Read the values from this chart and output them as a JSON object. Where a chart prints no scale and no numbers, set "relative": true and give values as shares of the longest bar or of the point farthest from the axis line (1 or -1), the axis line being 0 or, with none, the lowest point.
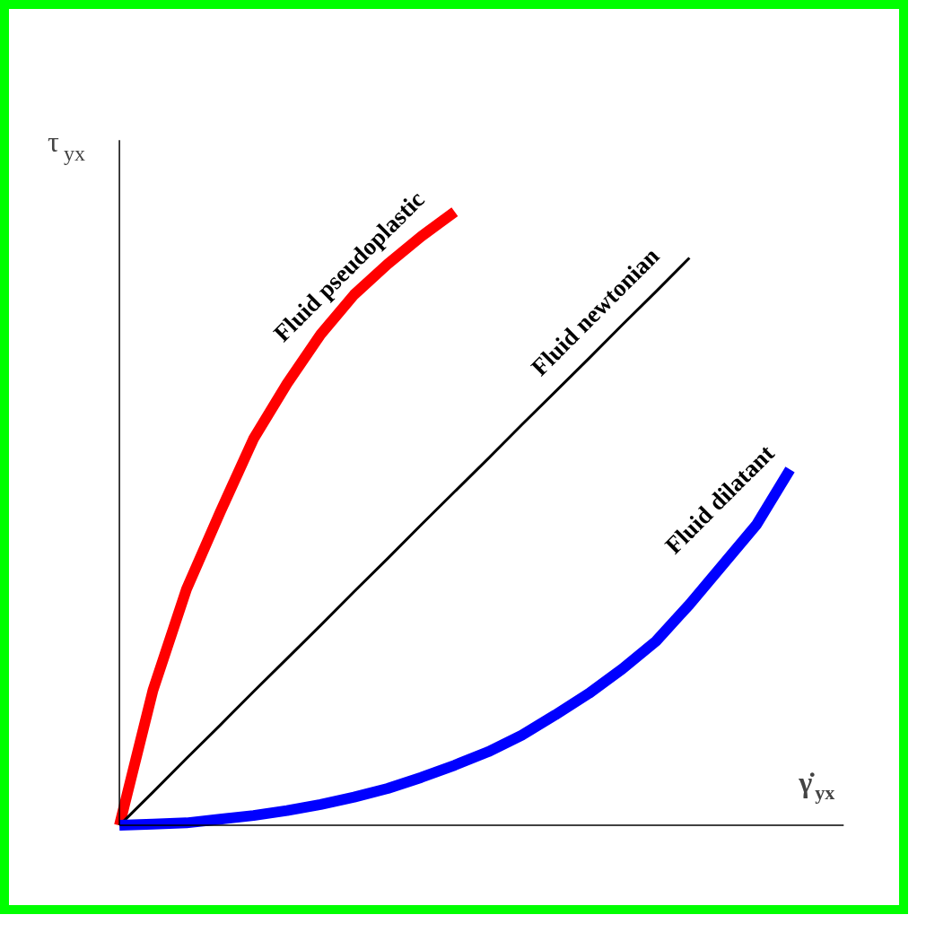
{
  "chart_data": {
    "type": "line",
    "relative": true,
    "xlabel": "γ̇$_{yx}$",
    "ylabel": "τ$_{yx}$",
    "categories": [
      null,
      null,
      null,
      null,
      null,
      null,
      null,
      null,
      null,
      null,
      null,
      null,
      null,
      null,
      null,
      null,
      null,
      null,
      null,
      null,
      null
    ],
    "series": [
      {
        "name": "Fluid pseudoplastic",
        "color": "#ff0000",
        "values": [
          0,
          0.22,
          0.385,
          0.51,
          0.63,
          0.72,
          0.8,
          0.865,
          0.915,
          0.96,
          1,
          null,
          null,
          null,
          null,
          null,
          null,
          null,
          null,
          null,
          null
        ]
      },
      {
        "name": "Fluid newtonian",
        "color": "#000000",
        "values": [
          0,
          0.054,
          0.109,
          0.163,
          0.218,
          0.272,
          0.326,
          0.381,
          0.435,
          0.49,
          0.544,
          0.598,
          0.653,
          0.707,
          0.761,
          0.816,
          0.87,
          0.925,
          null,
          null,
          null
        ]
      },
      {
        "name": "Fluid dilatant",
        "color": "#0000ff",
        "values": [
          0,
          0.002,
          0.004,
          0.01,
          0.016,
          0.024,
          0.034,
          0.046,
          0.06,
          0.078,
          0.098,
          0.12,
          0.147,
          0.18,
          0.215,
          0.255,
          0.3,
          0.36,
          0.425,
          0.49,
          0.58
        ]
      }
    ]
  }
}
